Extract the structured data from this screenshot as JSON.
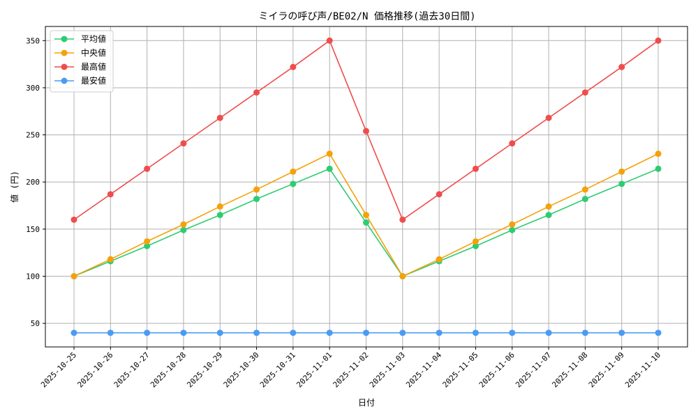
{
  "chart_data": {
    "type": "line",
    "title": "ミイラの呼び声/BE02/N 価格推移(過去30日間)",
    "xlabel": "日付",
    "ylabel": "値 (円)",
    "x": [
      "2025-10-25",
      "2025-10-26",
      "2025-10-27",
      "2025-10-28",
      "2025-10-29",
      "2025-10-30",
      "2025-10-31",
      "2025-11-01",
      "2025-11-02",
      "2025-11-03",
      "2025-11-04",
      "2025-11-05",
      "2025-11-06",
      "2025-11-07",
      "2025-11-08",
      "2025-11-09",
      "2025-11-10"
    ],
    "yticks": [
      50,
      100,
      150,
      200,
      250,
      300,
      350
    ],
    "ylim": [
      25,
      365
    ],
    "grid": true,
    "legend_position": "top-left",
    "series": [
      {
        "name": "平均値",
        "color": "#2ecc71",
        "values": [
          100,
          116,
          132,
          149,
          165,
          182,
          198,
          214,
          157,
          100,
          116,
          132,
          149,
          165,
          182,
          198,
          214
        ]
      },
      {
        "name": "中央値",
        "color": "#f5a10a",
        "values": [
          100,
          118,
          137,
          155,
          174,
          192,
          211,
          230,
          165,
          100,
          118,
          137,
          155,
          174,
          192,
          211,
          230
        ]
      },
      {
        "name": "最高値",
        "color": "#ef4d4d",
        "values": [
          160,
          187,
          214,
          241,
          268,
          295,
          322,
          350,
          254,
          160,
          187,
          214,
          241,
          268,
          295,
          322,
          350
        ]
      },
      {
        "name": "最安値",
        "color": "#4a9bf5",
        "values": [
          40,
          40,
          40,
          40,
          40,
          40,
          40,
          40,
          40,
          40,
          40,
          40,
          40,
          40,
          40,
          40,
          40
        ]
      }
    ]
  }
}
